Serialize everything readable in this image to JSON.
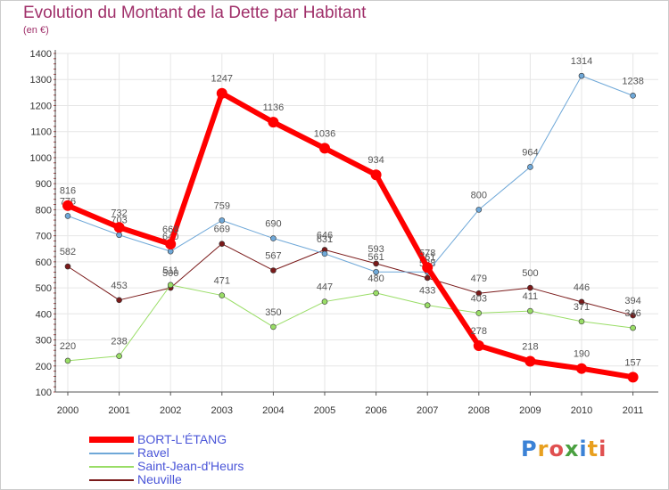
{
  "title": "Evolution du Montant de la Dette par Habitant",
  "unit_label": "(en €)",
  "logo": "Proxiti",
  "colors": {
    "title": "#a0306a",
    "legend_text": "#4a55d8",
    "grid": "#e6e6e6",
    "axis": "#555555",
    "tick_text": "#333333",
    "value_text": "#555555"
  },
  "chart_data": {
    "type": "line",
    "title": "Evolution du Montant de la Dette par Habitant",
    "ylabel": "(en €)",
    "xlabel": "",
    "ylim": [
      100,
      1400
    ],
    "yticks": [
      100,
      200,
      300,
      400,
      500,
      600,
      700,
      800,
      900,
      1000,
      1100,
      1200,
      1300,
      1400
    ],
    "grid": true,
    "legend_position": "bottom-left",
    "categories": [
      "2000",
      "2001",
      "2002",
      "2003",
      "2004",
      "2005",
      "2006",
      "2007",
      "2008",
      "2009",
      "2010",
      "2011"
    ],
    "series": [
      {
        "name": "Neuville",
        "color": "#7a1a1a",
        "width": 1,
        "values": [
          582,
          453,
          500,
          669,
          567,
          646,
          593,
          538,
          479,
          500,
          446,
          394
        ]
      },
      {
        "name": "Saint-Jean-d'Heurs",
        "color": "#99dd66",
        "width": 1,
        "values": [
          220,
          238,
          511,
          471,
          350,
          447,
          480,
          433,
          403,
          411,
          371,
          346
        ]
      },
      {
        "name": "Ravel",
        "color": "#6fa8d8",
        "width": 1,
        "values": [
          776,
          703,
          640,
          759,
          690,
          631,
          561,
          561,
          800,
          964,
          1314,
          1238
        ]
      },
      {
        "name": "BORT-L'ÉTANG",
        "color": "#ff0000",
        "width": 6,
        "values": [
          816,
          732,
          668,
          1247,
          1136,
          1036,
          934,
          578,
          278,
          218,
          190,
          157
        ]
      }
    ],
    "legend": [
      "BORT-L'ÉTANG",
      "Ravel",
      "Saint-Jean-d'Heurs",
      "Neuville"
    ]
  }
}
